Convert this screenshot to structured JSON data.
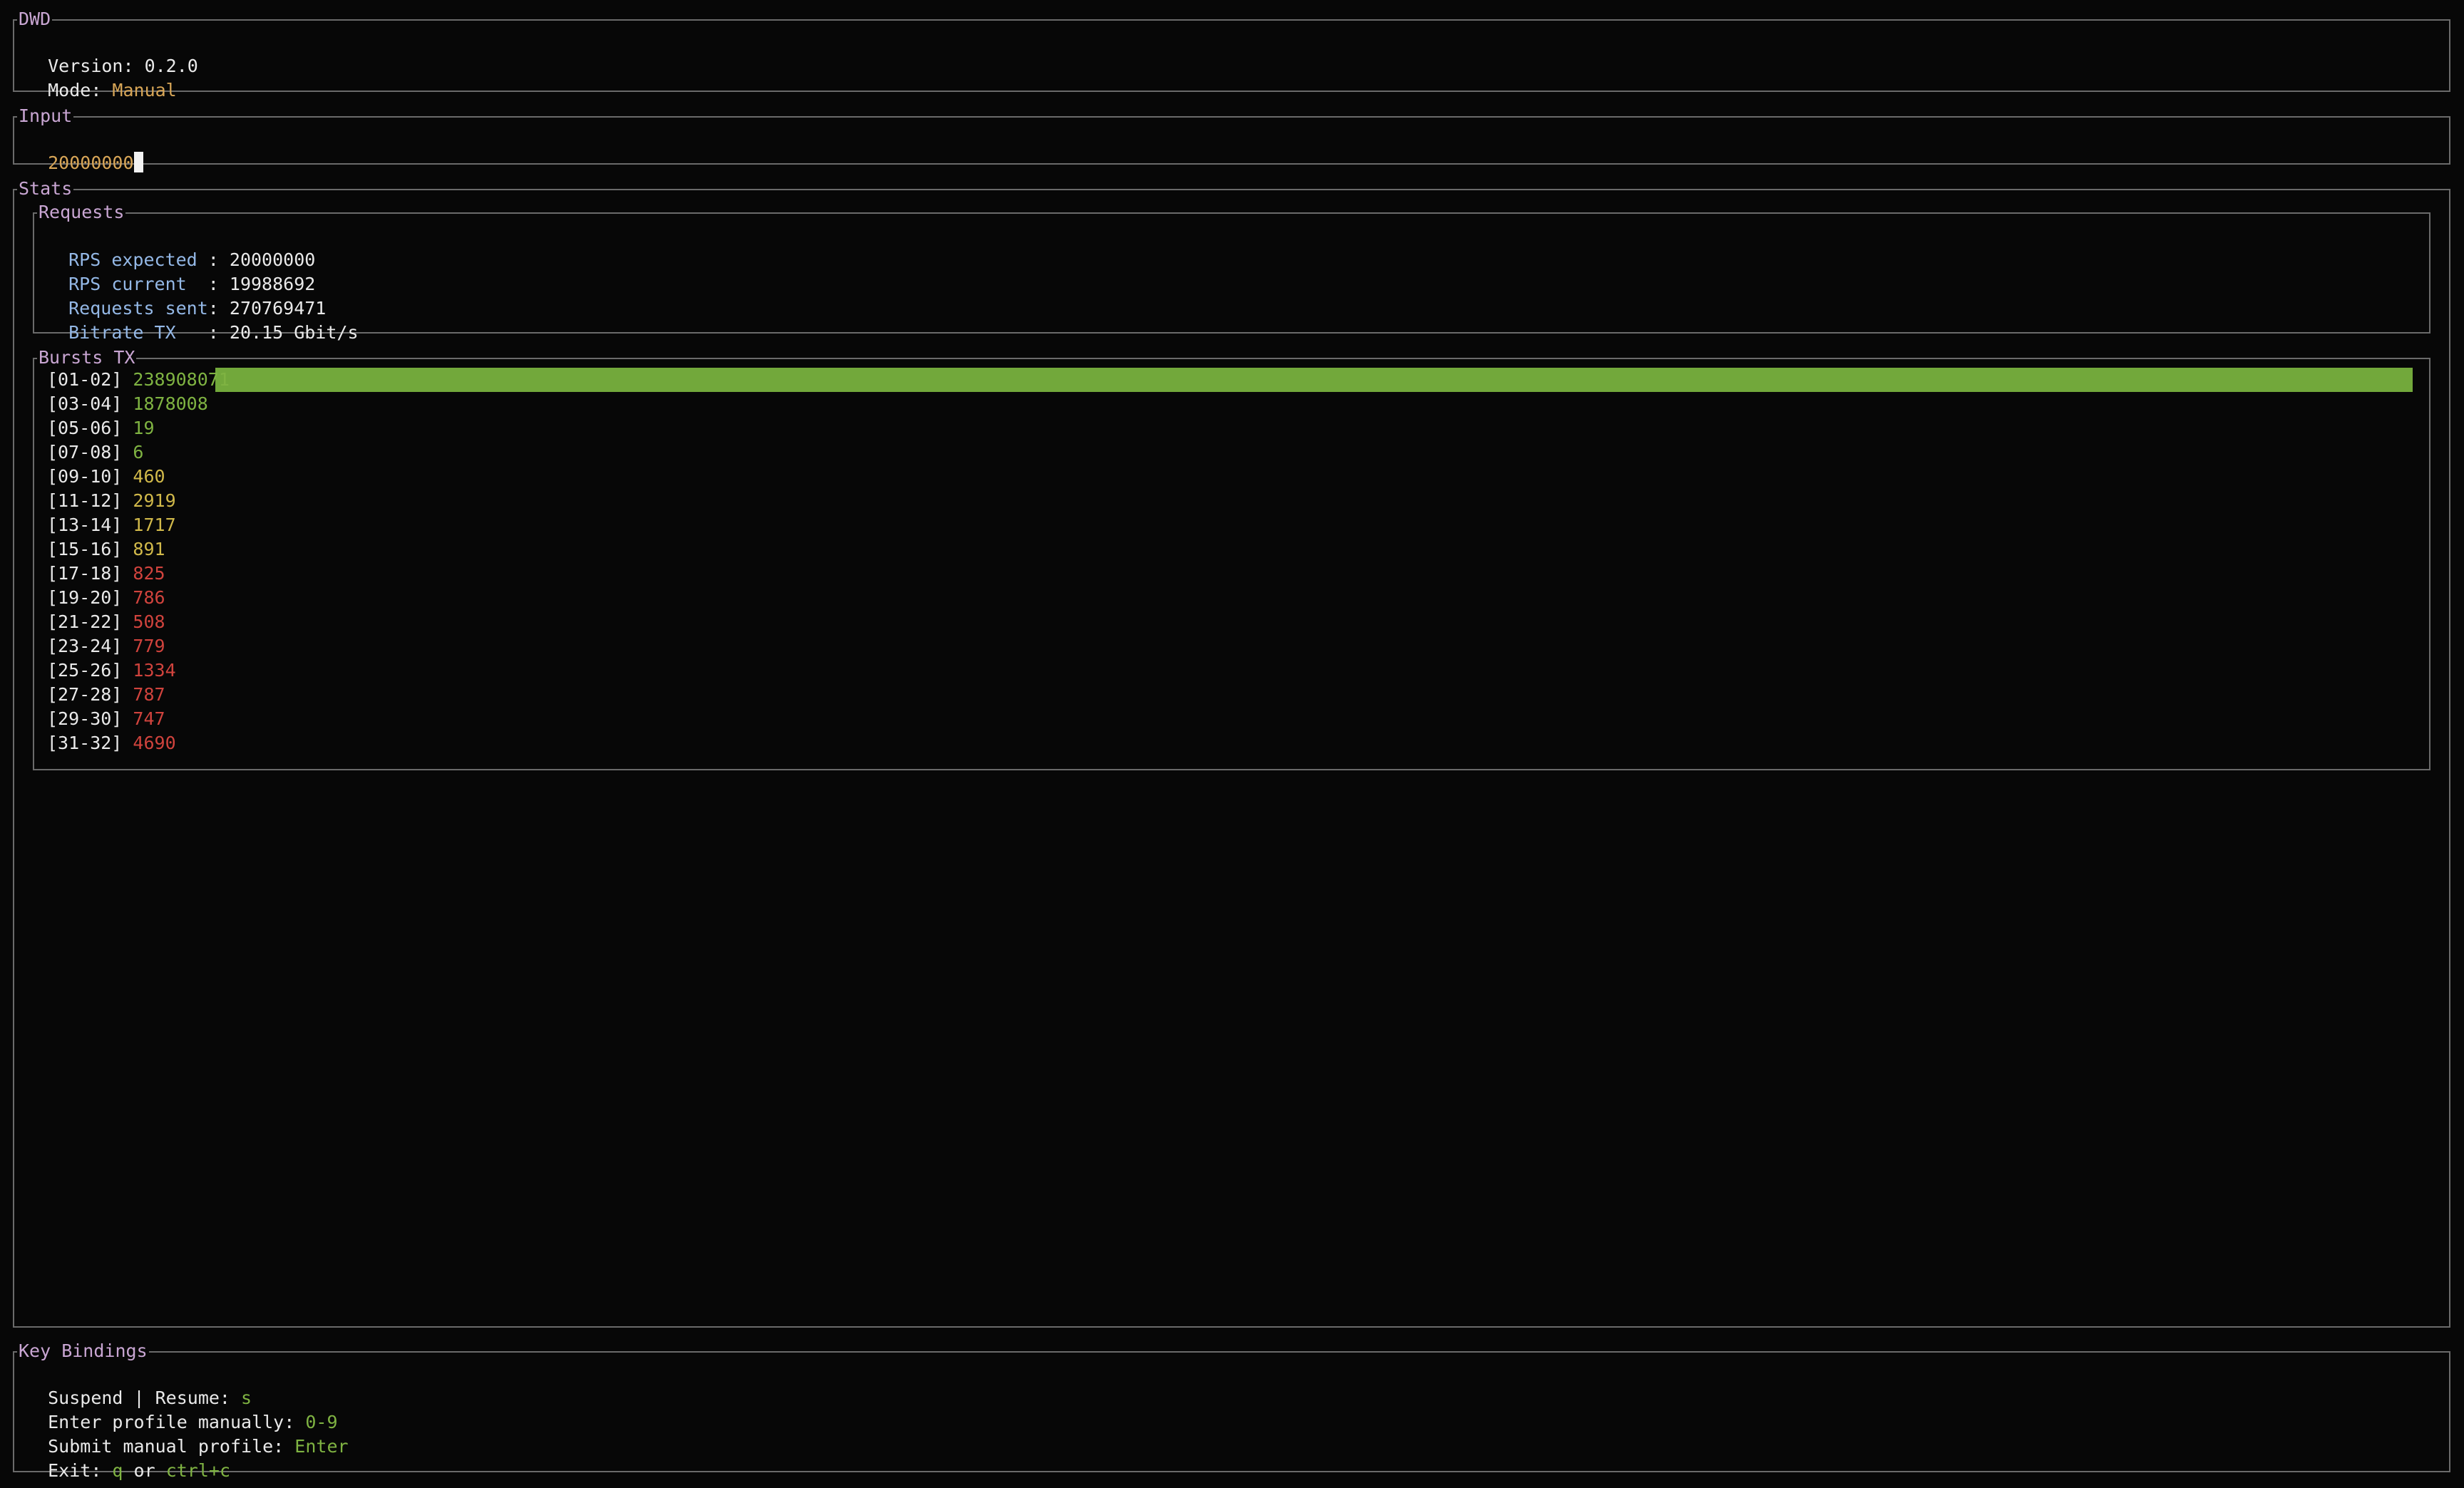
{
  "header": {
    "title": "DWD",
    "version_label": "Version: ",
    "version": "0.2.0",
    "mode_label": "Mode: ",
    "mode": "Manual"
  },
  "input": {
    "title": "Input",
    "value": "20000000"
  },
  "stats": {
    "title": "Stats",
    "requests": {
      "title": "Requests",
      "rows": [
        {
          "label": "RPS expected ",
          "value": "20000000"
        },
        {
          "label": "RPS current  ",
          "value": "19988692"
        },
        {
          "label": "Requests sent",
          "value": "270769471"
        },
        {
          "label": "Bitrate TX   ",
          "value": "20.15 Gbit/s"
        }
      ]
    },
    "bursts": {
      "title": "Bursts TX",
      "rows": [
        {
          "range": "[01-02]",
          "value": "238908071",
          "color": "#7fb342"
        },
        {
          "range": "[03-04]",
          "value": "1878008",
          "color": "#7fb342"
        },
        {
          "range": "[05-06]",
          "value": "19",
          "color": "#7fb342"
        },
        {
          "range": "[07-08]",
          "value": "6",
          "color": "#7fb342"
        },
        {
          "range": "[09-10]",
          "value": "460",
          "color": "#d1b94a"
        },
        {
          "range": "[11-12]",
          "value": "2919",
          "color": "#d1b94a"
        },
        {
          "range": "[13-14]",
          "value": "1717",
          "color": "#d1b94a"
        },
        {
          "range": "[15-16]",
          "value": "891",
          "color": "#d1b94a"
        },
        {
          "range": "[17-18]",
          "value": "825",
          "color": "#d0433d"
        },
        {
          "range": "[19-20]",
          "value": "786",
          "color": "#d0433d"
        },
        {
          "range": "[21-22]",
          "value": "508",
          "color": "#d0433d"
        },
        {
          "range": "[23-24]",
          "value": "779",
          "color": "#d0433d"
        },
        {
          "range": "[25-26]",
          "value": "1334",
          "color": "#d0433d"
        },
        {
          "range": "[27-28]",
          "value": "787",
          "color": "#d0433d"
        },
        {
          "range": "[29-30]",
          "value": "747",
          "color": "#d0433d"
        },
        {
          "range": "[31-32]",
          "value": "4690",
          "color": "#d0433d"
        }
      ],
      "bar_color": "#72a83b"
    }
  },
  "key_bindings": {
    "title": "Key Bindings",
    "suspend_label": "Suspend | Resume: ",
    "suspend_key": "s",
    "enter_label": "Enter profile manually: ",
    "enter_key": "0-9",
    "submit_label": "Submit manual profile: ",
    "submit_key": "Enter",
    "exit_label": "Exit: ",
    "exit_key_1": "q",
    "exit_or": " or ",
    "exit_key_2": "ctrl+c"
  }
}
